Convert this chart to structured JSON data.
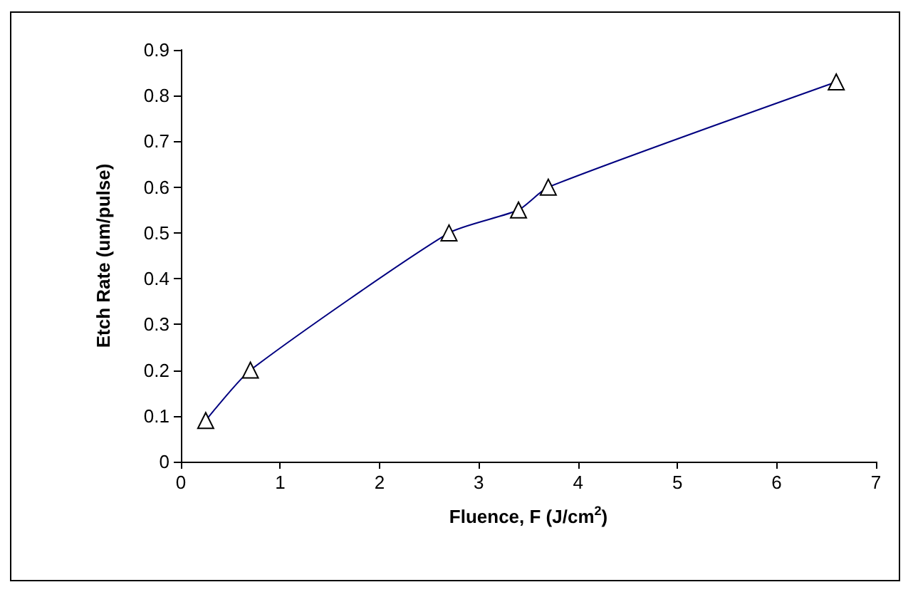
{
  "chart_data": {
    "type": "line",
    "xlabel": "Fluence, F (J/cm$^{2}$)",
    "ylabel": "Etch Rate (um/pulse)",
    "x": [
      0.25,
      0.7,
      2.7,
      3.4,
      3.7,
      6.6
    ],
    "series": [
      {
        "color": "#000080",
        "values": [
          0.09,
          0.2,
          0.5,
          0.55,
          0.6,
          0.83
        ]
      }
    ],
    "xlim": [
      0,
      7
    ],
    "xticks": [
      0,
      1,
      2,
      3,
      4,
      5,
      6,
      7
    ],
    "ylim": [
      0,
      0.9
    ],
    "yticks": [
      0,
      0.1,
      0.2,
      0.3,
      0.4,
      0.5,
      0.6,
      0.7,
      0.8,
      0.9
    ],
    "marker": "triangle",
    "line_style": "solid"
  }
}
